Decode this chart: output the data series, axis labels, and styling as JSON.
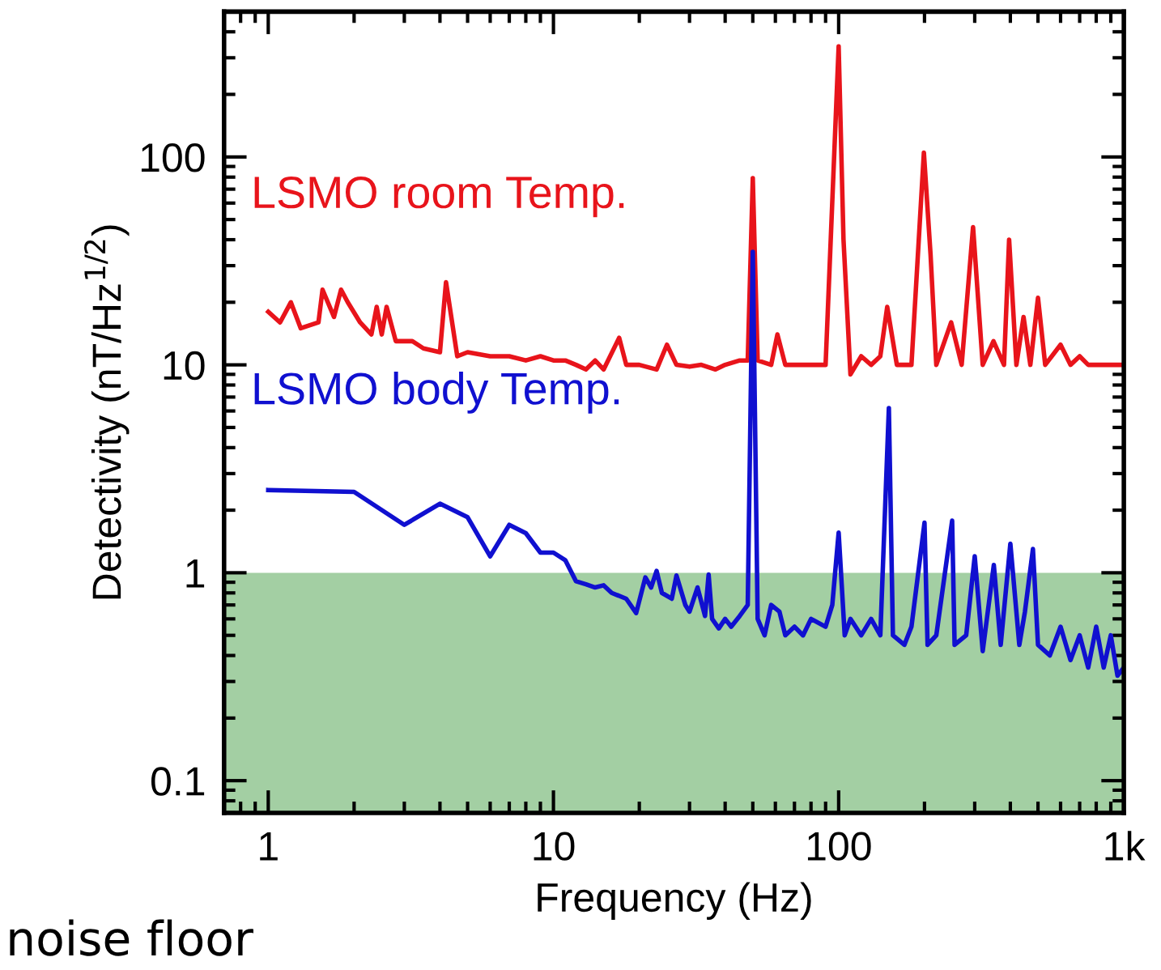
{
  "chart_data": {
    "type": "line",
    "xlabel": "Frequency (Hz)",
    "ylabel": "Detectivity (nT/Hz$^{1/2}$)",
    "log": "xy",
    "xlim": [
      0.7,
      1000
    ],
    "ylim": [
      0.07,
      500
    ],
    "xticks": [
      1,
      10,
      100,
      {
        "value": 1000,
        "label": "1k"
      }
    ],
    "yticks": [
      0.1,
      1,
      10,
      100
    ],
    "grid": false,
    "legend": false,
    "line_style": "solid",
    "marker": "none",
    "bands": [
      {
        "axis": "y",
        "from": 0.07,
        "to": 1,
        "label": "noise floor",
        "color": "#a3cfa3"
      }
    ],
    "series": [
      {
        "name": "LSMO room Temp.",
        "color": "#e8141b",
        "x": [
          1,
          1.1,
          1.2,
          1.3,
          1.5,
          1.55,
          1.7,
          1.8,
          1.9,
          2.1,
          2.3,
          2.4,
          2.5,
          2.6,
          2.8,
          3.2,
          3.5,
          4.0,
          4.2,
          4.6,
          5,
          6,
          7,
          8,
          9,
          10,
          11,
          12,
          13,
          14,
          15,
          17,
          18,
          20,
          23,
          25,
          27,
          30,
          33,
          37,
          40,
          45,
          48,
          50,
          52,
          58,
          61,
          65,
          75,
          90,
          100,
          104,
          110,
          120,
          130,
          140,
          148,
          160,
          180,
          199,
          210,
          220,
          248,
          270,
          296,
          320,
          349,
          380,
          396,
          420,
          445,
          470,
          500,
          530,
          600,
          650,
          700,
          750,
          800,
          1000
        ],
        "values": [
          18,
          16,
          20,
          15,
          16,
          23,
          17,
          23,
          20,
          16,
          14,
          19,
          14,
          19,
          13,
          13,
          12,
          11.5,
          25,
          11,
          11.5,
          11,
          11,
          10.5,
          11,
          10.5,
          10.5,
          10,
          9.5,
          10.5,
          9.5,
          13.5,
          10,
          10,
          9.5,
          12.5,
          10,
          9.8,
          10,
          9.5,
          10,
          10.5,
          10.5,
          79,
          10.5,
          10,
          14,
          10,
          10,
          10,
          340,
          40,
          9,
          11,
          10,
          11,
          19,
          10,
          10,
          105,
          34,
          10,
          16,
          10,
          46,
          10,
          13,
          10,
          40,
          10,
          17,
          10,
          21,
          10,
          12.5,
          10,
          11,
          10,
          10,
          10
        ]
      },
      {
        "name": "LSMO body Temp.",
        "color": "#1010d0",
        "x": [
          1,
          2,
          3,
          4,
          5,
          6,
          7,
          8,
          9,
          10,
          11,
          12,
          13,
          14,
          15,
          16,
          18,
          19.5,
          21,
          22,
          23,
          24,
          26,
          27,
          29,
          30,
          32,
          34,
          35,
          36,
          38,
          40,
          42,
          45,
          48,
          50,
          52,
          55,
          58,
          62,
          65,
          70,
          75,
          80,
          90,
          95,
          100,
          105,
          110,
          120,
          130,
          140,
          150,
          155,
          170,
          180,
          200,
          205,
          220,
          250,
          255,
          280,
          300,
          320,
          350,
          370,
          400,
          430,
          450,
          480,
          500,
          550,
          600,
          650,
          700,
          750,
          800,
          850,
          900,
          950,
          1000
        ],
        "values": [
          2.5,
          2.45,
          1.7,
          2.15,
          1.85,
          1.2,
          1.7,
          1.55,
          1.25,
          1.25,
          1.15,
          0.91,
          0.88,
          0.85,
          0.87,
          0.8,
          0.75,
          0.64,
          0.95,
          0.85,
          1.02,
          0.8,
          0.75,
          0.97,
          0.7,
          0.65,
          0.85,
          0.62,
          0.98,
          0.6,
          0.54,
          0.6,
          0.55,
          0.62,
          0.7,
          35,
          0.6,
          0.5,
          0.7,
          0.65,
          0.5,
          0.55,
          0.5,
          0.6,
          0.55,
          0.7,
          1.56,
          0.5,
          0.6,
          0.5,
          0.6,
          0.5,
          6.2,
          0.5,
          0.45,
          0.55,
          1.74,
          0.45,
          0.5,
          1.78,
          0.45,
          0.5,
          1.2,
          0.42,
          1.09,
          0.45,
          1.38,
          0.45,
          0.65,
          1.3,
          0.45,
          0.4,
          0.55,
          0.38,
          0.5,
          0.35,
          0.55,
          0.35,
          0.5,
          0.32,
          0.35
        ]
      }
    ]
  }
}
